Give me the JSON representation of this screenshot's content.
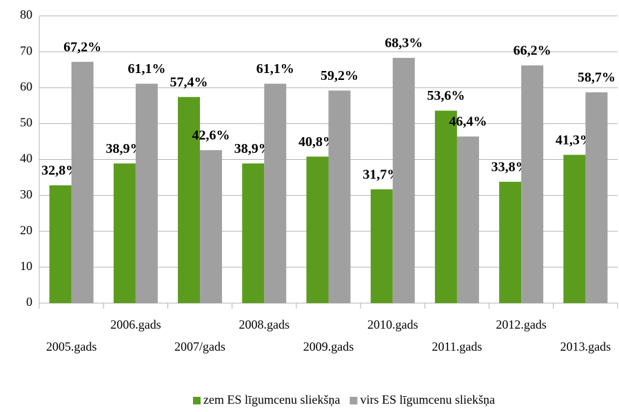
{
  "chart_data": {
    "type": "bar",
    "categories": [
      "2005.gads",
      "2006.gads",
      "2007/gads",
      "2008.gads",
      "2009.gads",
      "2010.gads",
      "2011.gads",
      "2012.gads",
      "2013.gads"
    ],
    "series": [
      {
        "name": "zem ES līgumcenu sliekšņa",
        "color": "#5b9c1e",
        "values": [
          32.8,
          38.9,
          57.4,
          38.9,
          40.8,
          31.7,
          53.6,
          33.8,
          41.3
        ],
        "value_labels": [
          "32,8%",
          "38,9%",
          "57,4%",
          "38,9%",
          "40,8%",
          "31,7%",
          "53,6%",
          "33,8%",
          "41,3%"
        ]
      },
      {
        "name": "virs ES līgumcenu sliekšņa",
        "color": "#a0a0a0",
        "values": [
          67.2,
          61.1,
          42.6,
          61.1,
          59.2,
          68.3,
          46.4,
          66.2,
          58.7
        ],
        "value_labels": [
          "67,2%",
          "61,1%",
          "42,6%",
          "61,1%",
          "59,2%",
          "68,3%",
          "46,4%",
          "66,2%",
          "58,7%"
        ]
      }
    ],
    "ylim": [
      0,
      80
    ],
    "yticks": [
      0,
      10,
      20,
      30,
      40,
      50,
      60,
      70,
      80
    ],
    "grid": true,
    "legend": "bottom"
  }
}
